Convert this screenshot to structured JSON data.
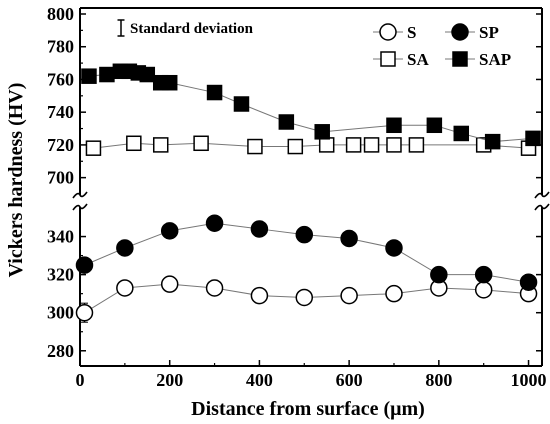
{
  "chart_data": {
    "type": "line",
    "xlabel": "Distance from surface (μm)",
    "ylabel": "Vickers hardness (HV)",
    "xlim": [
      0,
      1030
    ],
    "xticks": [
      0,
      200,
      400,
      600,
      800,
      1000
    ],
    "y_axis_break": true,
    "ylim_upper": [
      690,
      800
    ],
    "ylim_lower": [
      272,
      355
    ],
    "yticks_upper": [
      700,
      720,
      740,
      760,
      780,
      800
    ],
    "yticks_lower": [
      280,
      300,
      320,
      340
    ],
    "grid": false,
    "legend_position": "top-right",
    "annotation": "Standard deviation",
    "series": [
      {
        "name": "S",
        "marker": "open-circle",
        "x": [
          10,
          100,
          200,
          300,
          400,
          500,
          600,
          700,
          800,
          900,
          1000
        ],
        "values": [
          300,
          313,
          315,
          313,
          309,
          308,
          309,
          310,
          313,
          312,
          310
        ],
        "errors": [
          5,
          3,
          3,
          4,
          3,
          3,
          3,
          3,
          3,
          3,
          3
        ]
      },
      {
        "name": "SP",
        "marker": "filled-circle",
        "x": [
          10,
          100,
          200,
          300,
          400,
          500,
          600,
          700,
          800,
          900,
          1000
        ],
        "values": [
          325,
          334,
          343,
          347,
          344,
          341,
          339,
          334,
          320,
          320,
          316
        ],
        "errors": [
          4,
          4,
          4,
          3,
          4,
          4,
          4,
          3,
          4,
          4,
          4
        ]
      },
      {
        "name": "SA",
        "marker": "open-square",
        "x": [
          30,
          120,
          180,
          270,
          390,
          480,
          550,
          610,
          650,
          700,
          750,
          900,
          1000
        ],
        "values": [
          718,
          721,
          720,
          721,
          719,
          719,
          720,
          720,
          720,
          720,
          720,
          720,
          718
        ],
        "errors": [
          4,
          4,
          4,
          3,
          3,
          3,
          3,
          3,
          3,
          3,
          3,
          3,
          4
        ]
      },
      {
        "name": "SAP",
        "marker": "filled-square",
        "x": [
          20,
          60,
          90,
          110,
          130,
          150,
          180,
          200,
          300,
          360,
          460,
          540,
          700,
          790,
          850,
          920,
          1010
        ],
        "values": [
          762,
          763,
          765,
          765,
          764,
          763,
          758,
          758,
          752,
          745,
          734,
          728,
          732,
          732,
          727,
          722,
          724
        ],
        "errors": [
          4,
          4,
          4,
          4,
          4,
          4,
          4,
          4,
          4,
          4,
          4,
          4,
          4,
          4,
          4,
          3,
          4
        ]
      }
    ]
  }
}
